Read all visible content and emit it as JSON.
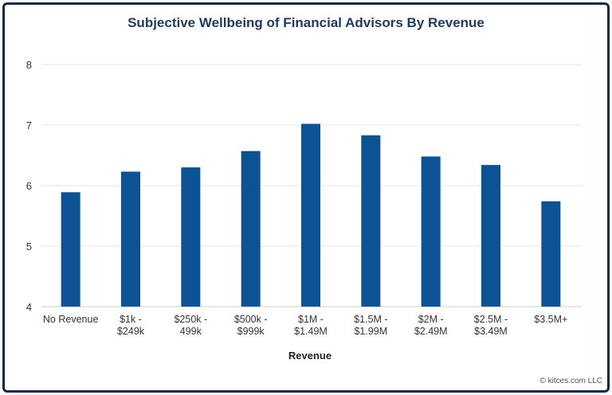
{
  "chart_data": {
    "type": "bar",
    "title": "Subjective Wellbeing of Financial Advisors By Revenue",
    "xlabel": "Revenue",
    "ylabel": "",
    "ylim": [
      4,
      8
    ],
    "yticks": [
      "4",
      "5",
      "6",
      "7",
      "8"
    ],
    "grid": true,
    "categories": [
      [
        "No Revenue"
      ],
      [
        "$1k -",
        "$249k"
      ],
      [
        "$250k -",
        "499k"
      ],
      [
        "$500k -",
        "$999k"
      ],
      [
        "$1M -",
        "$1.49M"
      ],
      [
        "$1.5M -",
        "$1.99M"
      ],
      [
        "$2M -",
        "$2.49M"
      ],
      [
        "$2.5M -",
        "$3.49M"
      ],
      [
        "$3.5M+"
      ]
    ],
    "values": [
      5.89,
      6.23,
      6.3,
      6.57,
      7.02,
      6.83,
      6.48,
      6.34,
      5.74
    ],
    "bar_color": "#0b5394",
    "title_color": "#1f3a5f",
    "credit": "© kitces.com LLC"
  }
}
